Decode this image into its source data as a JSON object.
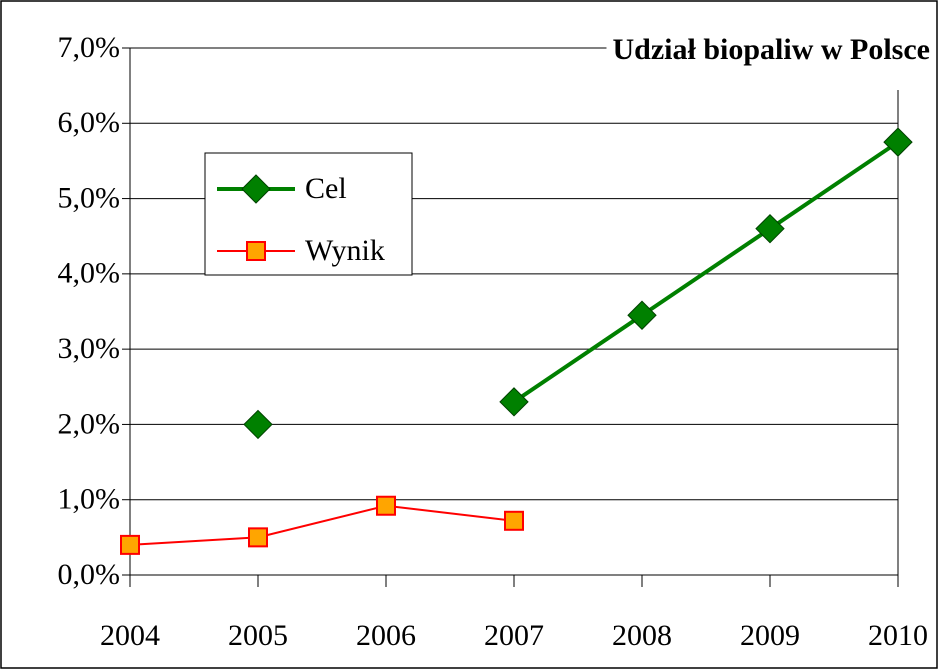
{
  "chart_data": {
    "type": "line",
    "title": "Udział biopaliw w Polsce",
    "categories": [
      "2004",
      "2005",
      "2006",
      "2007",
      "2008",
      "2009",
      "2010"
    ],
    "series": [
      {
        "name": "Cel",
        "color": "#008000",
        "values": [
          null,
          2.0,
          null,
          2.3,
          3.45,
          4.6,
          5.75
        ]
      },
      {
        "name": "Wynik",
        "color": "#ff0000",
        "values": [
          0.4,
          0.5,
          0.92,
          0.72,
          null,
          null,
          null
        ]
      }
    ],
    "ylim": [
      0,
      7
    ],
    "yticks": [
      {
        "value": 0,
        "label": "0,0%"
      },
      {
        "value": 1,
        "label": "1,0%"
      },
      {
        "value": 2,
        "label": "2,0%"
      },
      {
        "value": 3,
        "label": "3,0%"
      },
      {
        "value": 4,
        "label": "4,0%"
      },
      {
        "value": 5,
        "label": "5,0%"
      },
      {
        "value": 6,
        "label": "6,0%"
      },
      {
        "value": 7,
        "label": "7,0%"
      }
    ],
    "grid": true,
    "legend": "upper left"
  }
}
